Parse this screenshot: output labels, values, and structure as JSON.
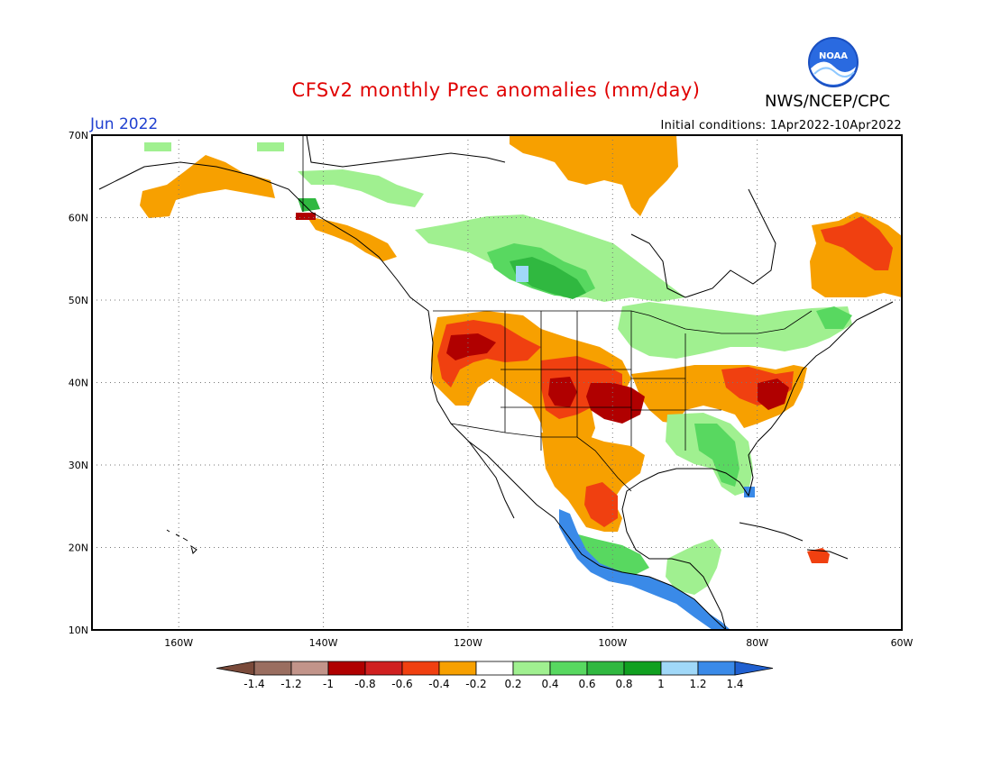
{
  "title": "CFSv2 monthly Prec anomalies (mm/day)",
  "organization": "NWS/NCEP/CPC",
  "logo_text": "NOAA",
  "period": "Jun 2022",
  "initial_conditions": "Initial conditions: 1Apr2022-10Apr2022",
  "map": {
    "lon_range": [
      -172,
      -60
    ],
    "lat_range": [
      10,
      70
    ],
    "lat_labels": [
      {
        "lat": 70,
        "label": "70N"
      },
      {
        "lat": 60,
        "label": "60N"
      },
      {
        "lat": 50,
        "label": "50N"
      },
      {
        "lat": 40,
        "label": "40N"
      },
      {
        "lat": 30,
        "label": "30N"
      },
      {
        "lat": 20,
        "label": "20N"
      },
      {
        "lat": 10,
        "label": "10N"
      }
    ],
    "lon_labels": [
      {
        "lon": -160,
        "label": "160W"
      },
      {
        "lon": -140,
        "label": "140W"
      },
      {
        "lon": -120,
        "label": "120W"
      },
      {
        "lon": -100,
        "label": "100W"
      },
      {
        "lon": -80,
        "label": "80W"
      },
      {
        "lon": -60,
        "label": "60W"
      }
    ],
    "gridlines": "dotted"
  },
  "colorbar": {
    "labels": [
      "-1.4",
      "-1.2",
      "-1",
      "-0.8",
      "-0.6",
      "-0.4",
      "-0.2",
      "0.2",
      "0.4",
      "0.6",
      "0.8",
      "1",
      "1.2",
      "1.4"
    ],
    "colors": [
      "#7a4a3a",
      "#9a6e60",
      "#c2948a",
      "#b00000",
      "#d02020",
      "#f04010",
      "#f7a000",
      "#ffffff",
      "#a0f090",
      "#58d860",
      "#30b840",
      "#10a020",
      "#a0d8f8",
      "#3a8ae8",
      "#2060d0"
    ]
  },
  "anomaly_regions": [
    {
      "category": "-0.2",
      "color": "#f7a000",
      "area": "Alaska west"
    },
    {
      "category": "-0.2",
      "color": "#f7a000",
      "area": "Canadian Arctic coast"
    },
    {
      "category": "-0.2",
      "color": "#f7a000",
      "area": "Quebec / Labrador"
    },
    {
      "category": "-0.2",
      "color": "#f7a000",
      "area": "US Pacific Northwest and Great Basin"
    },
    {
      "category": "-0.4",
      "color": "#f04010",
      "area": "Northern Rockies"
    },
    {
      "category": "-0.6",
      "color": "#d02020",
      "area": "Central Plains"
    },
    {
      "category": "-0.6",
      "color": "#d02020",
      "area": "Mid-Atlantic"
    },
    {
      "category": "0.2",
      "color": "#a0f090",
      "area": "Northern Canada"
    },
    {
      "category": "0.6",
      "color": "#58d860",
      "area": "Canadian Prairies"
    },
    {
      "category": "0.6",
      "color": "#58d860",
      "area": "Southeast US / Florida"
    },
    {
      "category": "1.2",
      "color": "#3a8ae8",
      "area": "Southern Mexico Pacific coast"
    }
  ]
}
